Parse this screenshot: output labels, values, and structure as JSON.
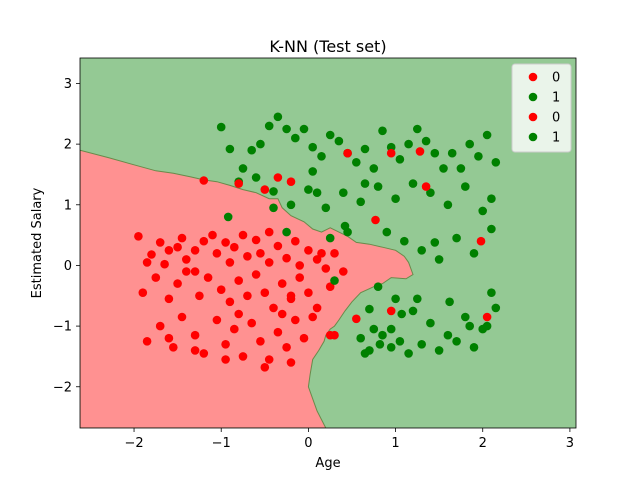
{
  "chart_data": {
    "type": "scatter",
    "title": "K-NN (Test set)",
    "xlabel": "Age",
    "ylabel": "Estimated Salary",
    "xlim": [
      -2.62,
      3.07
    ],
    "ylim": [
      -2.68,
      3.42
    ],
    "xticks": [
      -2,
      -1,
      0,
      1,
      2,
      3
    ],
    "yticks": [
      -2,
      -1,
      0,
      1,
      2,
      3
    ],
    "grid": false,
    "legend_placement": "top-right",
    "colors": {
      "class0_point": "#ff0000",
      "class1_point": "#008000",
      "class0_region": "#ff9191",
      "class1_region": "#94c994",
      "boundary": "#6a8a4a"
    },
    "regions": [
      {
        "label": "0",
        "boundary": [
          [
            -2.62,
            1.9
          ],
          [
            -2.3,
            1.78
          ],
          [
            -2.0,
            1.66
          ],
          [
            -1.75,
            1.56
          ],
          [
            -1.55,
            1.52
          ],
          [
            -1.35,
            1.46
          ],
          [
            -1.2,
            1.41
          ],
          [
            -1.05,
            1.38
          ],
          [
            -0.9,
            1.32
          ],
          [
            -0.75,
            1.25
          ],
          [
            -0.6,
            1.2
          ],
          [
            -0.45,
            1.1
          ],
          [
            -0.35,
            1.1
          ],
          [
            -0.3,
            0.95
          ],
          [
            -0.2,
            0.82
          ],
          [
            -0.05,
            0.72
          ],
          [
            0.05,
            0.6
          ],
          [
            0.15,
            0.55
          ],
          [
            0.25,
            0.62
          ],
          [
            0.35,
            0.55
          ],
          [
            0.45,
            0.48
          ],
          [
            0.55,
            0.38
          ],
          [
            0.7,
            0.35
          ],
          [
            0.85,
            0.3
          ],
          [
            1.0,
            0.25
          ],
          [
            1.1,
            0.15
          ],
          [
            1.15,
            0.05
          ],
          [
            1.2,
            -0.15
          ],
          [
            1.12,
            -0.22
          ],
          [
            0.95,
            -0.2
          ],
          [
            0.85,
            -0.3
          ],
          [
            0.75,
            -0.35
          ],
          [
            0.6,
            -0.45
          ],
          [
            0.5,
            -0.6
          ],
          [
            0.42,
            -0.75
          ],
          [
            0.35,
            -0.9
          ],
          [
            0.3,
            -1.0
          ],
          [
            0.25,
            -1.05
          ],
          [
            0.2,
            -1.15
          ],
          [
            0.18,
            -1.25
          ],
          [
            0.12,
            -1.4
          ],
          [
            0.05,
            -1.55
          ],
          [
            0.02,
            -1.8
          ],
          [
            0.0,
            -2.0
          ],
          [
            0.1,
            -2.4
          ],
          [
            0.2,
            -2.68
          ],
          [
            -2.62,
            -2.68
          ]
        ]
      }
    ],
    "series": [
      {
        "name": "0",
        "set": "training",
        "color": "#ff0000",
        "points": [
          [
            -1.95,
            0.48
          ],
          [
            -1.85,
            0.05
          ],
          [
            -1.8,
            0.18
          ],
          [
            -1.7,
            0.38
          ],
          [
            -1.65,
            0.02
          ],
          [
            -1.6,
            0.25
          ],
          [
            -1.5,
            0.3
          ],
          [
            -1.45,
            0.45
          ],
          [
            -1.4,
            0.1
          ],
          [
            -1.3,
            0.25
          ],
          [
            -1.2,
            0.4
          ],
          [
            -1.1,
            0.5
          ],
          [
            -1.05,
            0.2
          ],
          [
            -0.95,
            0.38
          ],
          [
            -0.9,
            0.05
          ],
          [
            -0.85,
            0.3
          ],
          [
            -0.75,
            0.5
          ],
          [
            -0.7,
            0.15
          ],
          [
            -0.6,
            0.42
          ],
          [
            -0.55,
            0.2
          ],
          [
            -0.45,
            0.05
          ],
          [
            -0.35,
            0.32
          ],
          [
            -0.25,
            0.12
          ],
          [
            -0.15,
            0.4
          ],
          [
            -0.1,
            0.0
          ],
          [
            0.0,
            0.25
          ],
          [
            0.1,
            0.1
          ],
          [
            0.2,
            -0.05
          ],
          [
            0.3,
            0.2
          ],
          [
            0.4,
            -0.1
          ],
          [
            -1.9,
            -0.45
          ],
          [
            -1.75,
            -0.2
          ],
          [
            -1.6,
            -0.55
          ],
          [
            -1.5,
            -0.3
          ],
          [
            -1.4,
            -0.1
          ],
          [
            -1.25,
            -0.5
          ],
          [
            -1.15,
            -0.2
          ],
          [
            -1.0,
            -0.4
          ],
          [
            -0.9,
            -0.6
          ],
          [
            -0.8,
            -0.25
          ],
          [
            -0.7,
            -0.5
          ],
          [
            -0.6,
            -0.15
          ],
          [
            -0.5,
            -0.45
          ],
          [
            -0.4,
            -0.7
          ],
          [
            -0.3,
            -0.3
          ],
          [
            -0.2,
            -0.55
          ],
          [
            -0.1,
            -0.2
          ],
          [
            0.0,
            -0.45
          ],
          [
            0.1,
            -0.7
          ],
          [
            0.25,
            -0.35
          ],
          [
            -1.85,
            -1.25
          ],
          [
            -1.7,
            -1.0
          ],
          [
            -1.55,
            -1.35
          ],
          [
            -1.45,
            -0.85
          ],
          [
            -1.3,
            -1.15
          ],
          [
            -1.2,
            -1.45
          ],
          [
            -1.05,
            -0.9
          ],
          [
            -0.95,
            -1.3
          ],
          [
            -0.85,
            -1.05
          ],
          [
            -0.75,
            -1.5
          ],
          [
            -0.65,
            -0.95
          ],
          [
            -0.55,
            -1.25
          ],
          [
            -0.45,
            -1.55
          ],
          [
            -0.35,
            -1.1
          ],
          [
            -0.25,
            -1.35
          ],
          [
            -0.15,
            -0.9
          ],
          [
            -0.05,
            -1.2
          ],
          [
            -0.5,
            -1.68
          ],
          [
            -0.2,
            -1.6
          ],
          [
            -0.95,
            -1.55
          ],
          [
            -1.3,
            -1.4
          ],
          [
            -1.6,
            -1.2
          ],
          [
            0.3,
            -1.15
          ],
          [
            -0.3,
            -0.8
          ],
          [
            -0.8,
            -0.8
          ]
        ]
      },
      {
        "name": "1",
        "set": "training",
        "color": "#008000",
        "points": [
          [
            -1.0,
            2.28
          ],
          [
            -0.9,
            1.92
          ],
          [
            -0.75,
            1.6
          ],
          [
            -0.65,
            1.9
          ],
          [
            -0.55,
            2.0
          ],
          [
            -0.45,
            2.3
          ],
          [
            -0.35,
            2.45
          ],
          [
            -0.25,
            2.25
          ],
          [
            -0.15,
            2.1
          ],
          [
            -0.05,
            2.25
          ],
          [
            0.05,
            1.95
          ],
          [
            0.15,
            1.8
          ],
          [
            0.25,
            2.15
          ],
          [
            0.35,
            2.05
          ],
          [
            0.45,
            1.85
          ],
          [
            0.55,
            1.7
          ],
          [
            0.65,
            1.92
          ],
          [
            0.75,
            1.6
          ],
          [
            0.85,
            2.22
          ],
          [
            0.95,
            1.95
          ],
          [
            1.05,
            1.75
          ],
          [
            1.15,
            2.0
          ],
          [
            1.25,
            2.25
          ],
          [
            1.35,
            2.05
          ],
          [
            1.45,
            1.85
          ],
          [
            1.55,
            1.6
          ],
          [
            1.65,
            1.85
          ],
          [
            1.75,
            1.6
          ],
          [
            1.85,
            2.0
          ],
          [
            1.95,
            1.8
          ],
          [
            2.05,
            2.15
          ],
          [
            2.15,
            1.7
          ],
          [
            -0.8,
            1.38
          ],
          [
            -0.6,
            1.45
          ],
          [
            -0.4,
            1.22
          ],
          [
            -0.2,
            1.0
          ],
          [
            0.0,
            1.25
          ],
          [
            0.2,
            0.95
          ],
          [
            0.4,
            1.2
          ],
          [
            0.6,
            1.05
          ],
          [
            0.8,
            1.3
          ],
          [
            1.0,
            1.1
          ],
          [
            1.2,
            1.35
          ],
          [
            1.4,
            1.2
          ],
          [
            1.6,
            1.0
          ],
          [
            1.8,
            1.3
          ],
          [
            2.0,
            0.9
          ],
          [
            2.1,
            1.1
          ],
          [
            0.9,
            0.55
          ],
          [
            1.1,
            0.4
          ],
          [
            1.3,
            0.25
          ],
          [
            1.5,
            0.1
          ],
          [
            1.7,
            0.45
          ],
          [
            1.9,
            0.2
          ],
          [
            2.1,
            0.6
          ],
          [
            0.8,
            -0.35
          ],
          [
            1.0,
            -0.55
          ],
          [
            1.2,
            -0.75
          ],
          [
            1.4,
            -0.95
          ],
          [
            1.6,
            -1.15
          ],
          [
            1.8,
            -0.85
          ],
          [
            2.0,
            -1.05
          ],
          [
            2.15,
            -0.7
          ],
          [
            0.6,
            -1.2
          ],
          [
            0.7,
            -1.4
          ],
          [
            0.85,
            -1.15
          ],
          [
            0.95,
            -1.35
          ],
          [
            1.05,
            -1.25
          ],
          [
            1.15,
            -1.45
          ],
          [
            1.3,
            -1.3
          ],
          [
            1.5,
            -1.4
          ],
          [
            1.7,
            -1.25
          ],
          [
            1.9,
            -1.35
          ],
          [
            2.05,
            -1.0
          ],
          [
            0.75,
            -1.05
          ]
        ]
      },
      {
        "name": "0",
        "set": "test",
        "color": "#ff0000",
        "points": [
          [
            -1.2,
            1.4
          ],
          [
            -0.8,
            1.35
          ],
          [
            -0.35,
            1.45
          ],
          [
            -0.2,
            1.38
          ],
          [
            -0.5,
            1.25
          ],
          [
            0.45,
            1.85
          ],
          [
            0.95,
            1.85
          ],
          [
            1.28,
            1.88
          ],
          [
            1.35,
            1.3
          ],
          [
            0.77,
            0.75
          ],
          [
            1.98,
            0.4
          ],
          [
            0.55,
            -0.88
          ],
          [
            0.95,
            -0.75
          ],
          [
            2.05,
            -0.85
          ],
          [
            -0.2,
            -0.5
          ],
          [
            0.25,
            -1.15
          ],
          [
            0.15,
            0.2
          ],
          [
            -1.3,
            -0.1
          ],
          [
            0.05,
            -0.85
          ],
          [
            -0.45,
            0.55
          ]
        ]
      },
      {
        "name": "1",
        "set": "test",
        "color": "#008000",
        "points": [
          [
            -0.92,
            0.8
          ],
          [
            -0.4,
            0.95
          ],
          [
            0.05,
            1.55
          ],
          [
            0.1,
            1.2
          ],
          [
            0.25,
            0.45
          ],
          [
            0.45,
            0.55
          ],
          [
            0.3,
            -0.25
          ],
          [
            -0.25,
            0.55
          ],
          [
            0.65,
            1.35
          ],
          [
            0.42,
            0.65
          ],
          [
            1.45,
            0.38
          ],
          [
            1.62,
            -0.6
          ],
          [
            0.7,
            -0.72
          ],
          [
            1.07,
            -0.8
          ],
          [
            0.82,
            -1.3
          ],
          [
            1.25,
            -0.55
          ],
          [
            0.65,
            -1.45
          ],
          [
            1.85,
            -1.0
          ],
          [
            0.95,
            -1.05
          ],
          [
            2.1,
            -0.45
          ]
        ]
      }
    ],
    "legend": {
      "entries": [
        {
          "label": "0",
          "color": "#ff0000"
        },
        {
          "label": "1",
          "color": "#008000"
        },
        {
          "label": "0",
          "color": "#ff0000"
        },
        {
          "label": "1",
          "color": "#008000"
        }
      ]
    }
  }
}
